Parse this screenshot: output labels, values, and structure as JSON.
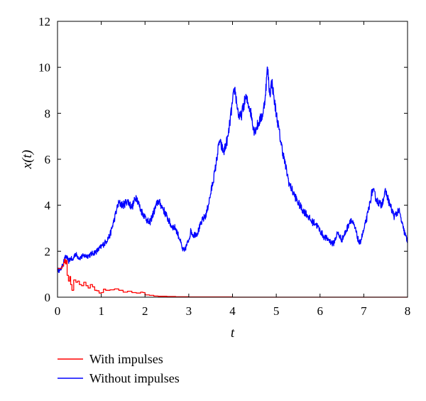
{
  "chart_data": {
    "type": "line",
    "title": "",
    "xlabel": "t",
    "ylabel": "x(t)",
    "xlim": [
      0,
      8
    ],
    "ylim": [
      0,
      12
    ],
    "xticks": [
      "0",
      "1",
      "2",
      "3",
      "4",
      "5",
      "6",
      "7",
      "8"
    ],
    "yticks": [
      "0",
      "2",
      "4",
      "6",
      "8",
      "10",
      "12"
    ],
    "grid": false,
    "legend_position": "bottom-left",
    "series": [
      {
        "name": "With impulses",
        "color": "#ff0000",
        "x": [
          0,
          0.1,
          0.14,
          0.16,
          0.18,
          0.2,
          0.22,
          0.25,
          0.28,
          0.3,
          0.33,
          0.37,
          0.42,
          0.46,
          0.5,
          0.55,
          0.6,
          0.65,
          0.7,
          0.75,
          0.8,
          0.85,
          0.9,
          0.95,
          1.0,
          1.05,
          1.1,
          1.2,
          1.3,
          1.4,
          1.5,
          1.6,
          1.7,
          1.8,
          1.9,
          1.95,
          2.0,
          2.1,
          2.2,
          2.3,
          2.5,
          2.7,
          3.0,
          4.0,
          5.0,
          6.0,
          7.0,
          8.0
        ],
        "y": [
          1.25,
          1.35,
          1.5,
          1.65,
          1.45,
          1.6,
          0.95,
          0.7,
          0.9,
          0.55,
          0.3,
          0.75,
          0.65,
          0.7,
          0.55,
          0.5,
          0.65,
          0.5,
          0.4,
          0.55,
          0.45,
          0.3,
          0.28,
          0.18,
          0.2,
          0.35,
          0.3,
          0.32,
          0.36,
          0.3,
          0.22,
          0.26,
          0.2,
          0.18,
          0.22,
          0.2,
          0.1,
          0.08,
          0.05,
          0.04,
          0.03,
          0.02,
          0.01,
          0,
          0,
          0,
          0,
          0
        ]
      },
      {
        "name": "Without impulses",
        "color": "#0000ff",
        "x": [
          0,
          0.05,
          0.1,
          0.15,
          0.2,
          0.25,
          0.3,
          0.35,
          0.4,
          0.5,
          0.6,
          0.7,
          0.8,
          0.9,
          1.0,
          1.1,
          1.2,
          1.3,
          1.35,
          1.4,
          1.5,
          1.6,
          1.7,
          1.8,
          1.9,
          2.0,
          2.1,
          2.2,
          2.3,
          2.4,
          2.5,
          2.6,
          2.7,
          2.8,
          2.85,
          2.9,
          3.0,
          3.05,
          3.1,
          3.2,
          3.3,
          3.4,
          3.5,
          3.6,
          3.7,
          3.8,
          3.9,
          4.0,
          4.05,
          4.1,
          4.15,
          4.2,
          4.3,
          4.4,
          4.5,
          4.6,
          4.7,
          4.75,
          4.8,
          4.85,
          4.9,
          4.95,
          5.0,
          5.1,
          5.2,
          5.3,
          5.4,
          5.5,
          5.6,
          5.7,
          5.8,
          5.9,
          6.0,
          6.1,
          6.2,
          6.3,
          6.4,
          6.5,
          6.6,
          6.7,
          6.8,
          6.9,
          7.0,
          7.1,
          7.2,
          7.3,
          7.4,
          7.5,
          7.6,
          7.7,
          7.8,
          7.9,
          8.0
        ],
        "y": [
          1.2,
          1.15,
          1.3,
          1.6,
          1.8,
          1.55,
          1.7,
          1.6,
          1.9,
          1.7,
          1.8,
          1.8,
          1.9,
          2.0,
          2.2,
          2.4,
          2.7,
          3.4,
          3.8,
          4.1,
          4.0,
          4.2,
          3.9,
          4.4,
          3.8,
          3.5,
          3.2,
          3.7,
          4.2,
          3.9,
          3.5,
          3.1,
          3.0,
          2.5,
          2.1,
          2.0,
          2.5,
          2.9,
          2.7,
          2.8,
          3.3,
          3.6,
          4.5,
          5.5,
          6.8,
          6.3,
          7.0,
          8.5,
          9.1,
          8.4,
          7.8,
          7.9,
          8.7,
          8.2,
          7.2,
          7.6,
          8.0,
          8.8,
          10.0,
          8.8,
          9.4,
          8.6,
          8.0,
          6.8,
          5.8,
          4.9,
          4.5,
          4.1,
          3.8,
          3.6,
          3.3,
          3.2,
          2.9,
          2.6,
          2.5,
          2.3,
          2.8,
          2.5,
          2.9,
          3.4,
          3.0,
          2.3,
          2.9,
          3.7,
          4.7,
          4.2,
          4.0,
          4.6,
          4.0,
          3.5,
          3.8,
          3.0,
          2.4
        ]
      }
    ]
  }
}
